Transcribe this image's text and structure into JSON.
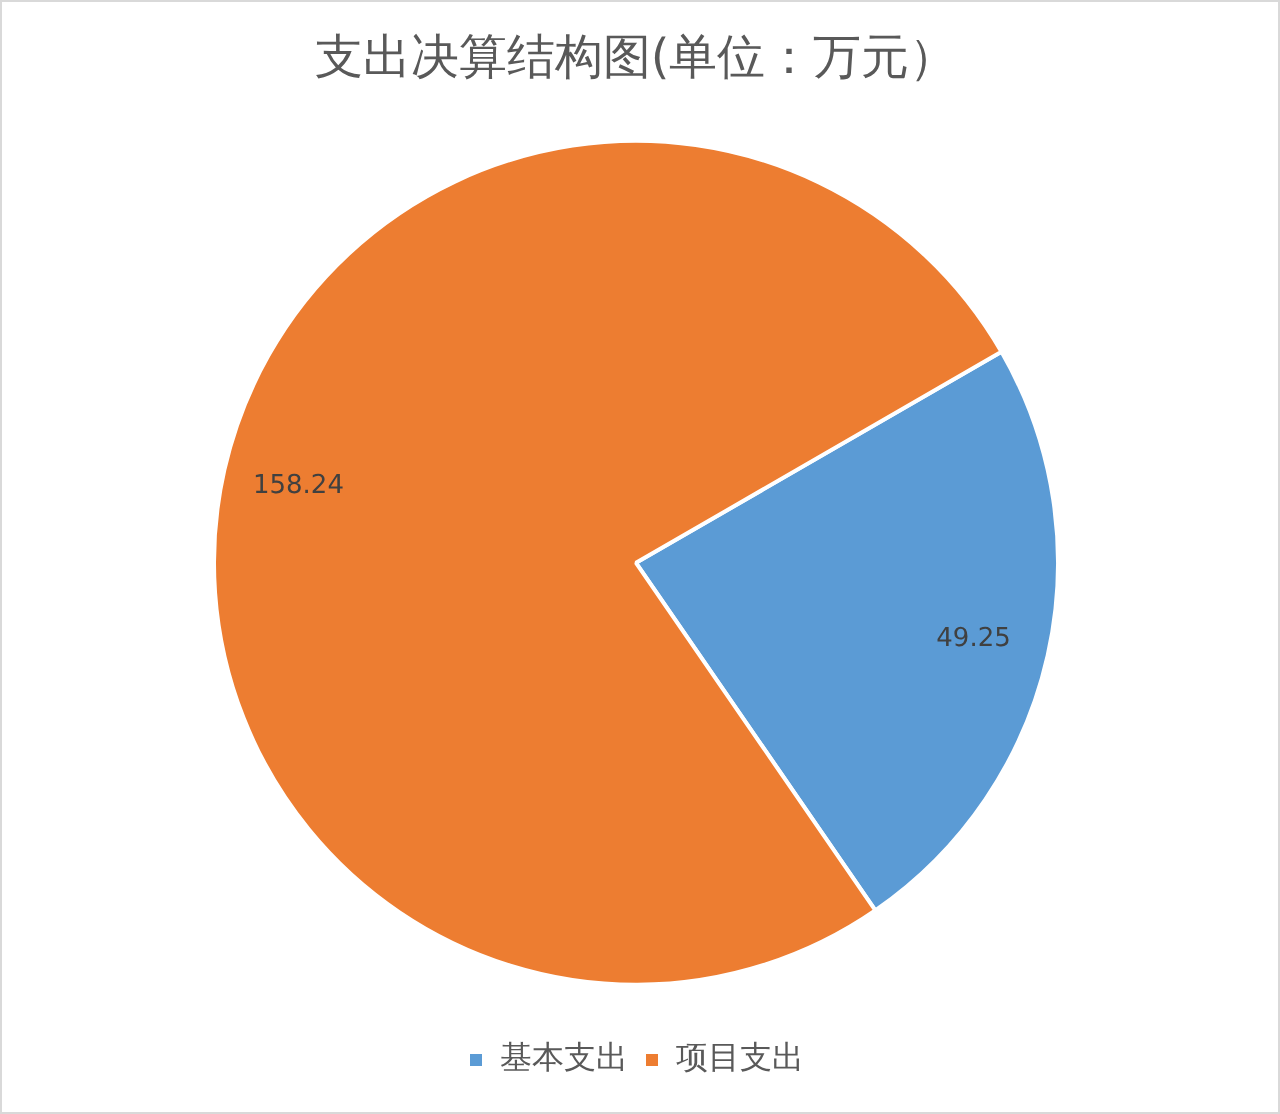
{
  "chart_data": {
    "type": "pie",
    "title": "支出决算结构图(单位：万元）",
    "categories": [
      "基本支出",
      "项目支出"
    ],
    "values": [
      49.25,
      158.24
    ],
    "colors": [
      "#5b9bd5",
      "#ed7d31"
    ],
    "data_labels": true,
    "legend": "bottom"
  }
}
